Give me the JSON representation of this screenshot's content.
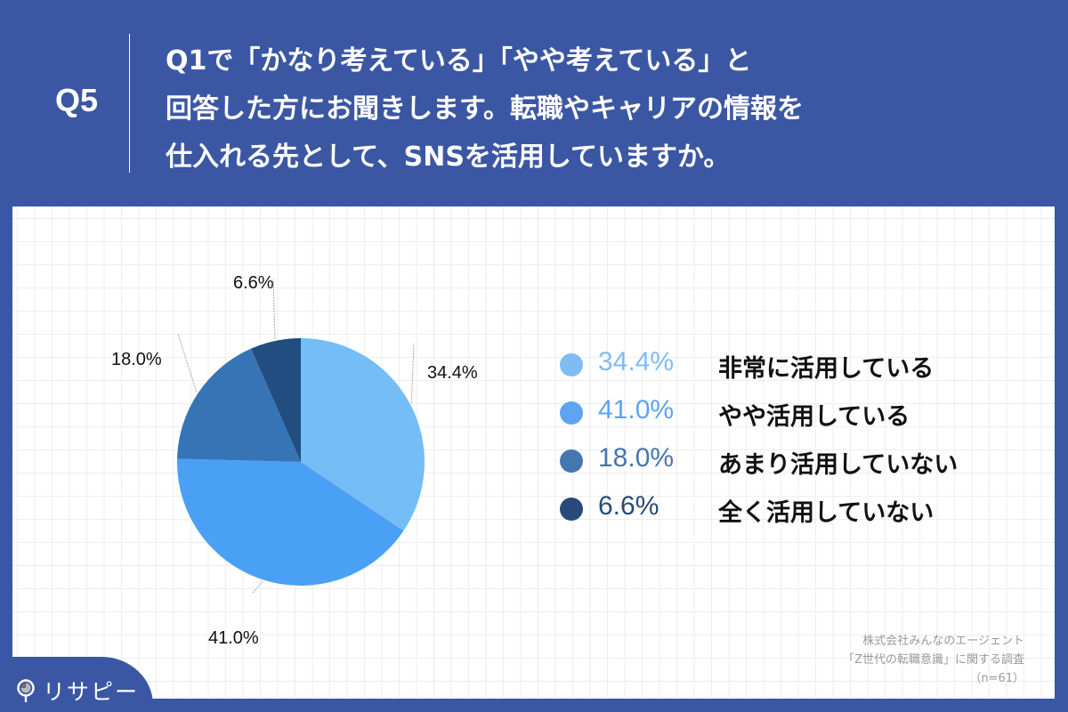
{
  "header": {
    "question_number": "Q5",
    "question_lines": [
      "Q1で「かなり考えている」「やや考えている」と",
      "回答した方にお聞きします。転職やキャリアの情報を",
      "仕入れる先として、SNSを活用していますか。"
    ]
  },
  "colors": {
    "background": "#3b57a4",
    "slice_1": "#74bdf7",
    "slice_2": "#4aa0f5",
    "slice_3": "#3674b5",
    "slice_4": "#214d80"
  },
  "chart_data": {
    "type": "pie",
    "title": "Q1で「かなり考えている」「やや考えている」と回答した方にお聞きします。転職やキャリアの情報を仕入れる先として、SNSを活用していますか。",
    "categories": [
      "非常に活用している",
      "やや活用している",
      "あまり活用していない",
      "全く活用していない"
    ],
    "values": [
      34.4,
      41.0,
      18.0,
      6.6
    ],
    "unit": "%",
    "start_angle": "12 o'clock, clockwise",
    "legend_position": "right",
    "data_labels": [
      "34.4%",
      "41.0%",
      "18.0%",
      "6.6%"
    ],
    "n": 61
  },
  "pie_labels": [
    "34.4%",
    "41.0%",
    "18.0%",
    "6.6%"
  ],
  "legend": [
    {
      "pct": "34.4%",
      "label": "非常に活用している",
      "color": "#7fbcf4"
    },
    {
      "pct": "41.0%",
      "label": "やや活用している",
      "color": "#5ea4f2"
    },
    {
      "pct": "18.0%",
      "label": "あまり活用していない",
      "color": "#4576b0"
    },
    {
      "pct": "6.6%",
      "label": "全く活用していない",
      "color": "#284a78"
    }
  ],
  "source": {
    "line1": "株式会社みんなのエージェント",
    "line2": "「Z世代の転職意識」に関する調査",
    "line3": "（n=61）"
  },
  "brand": {
    "name": "リサピー"
  }
}
